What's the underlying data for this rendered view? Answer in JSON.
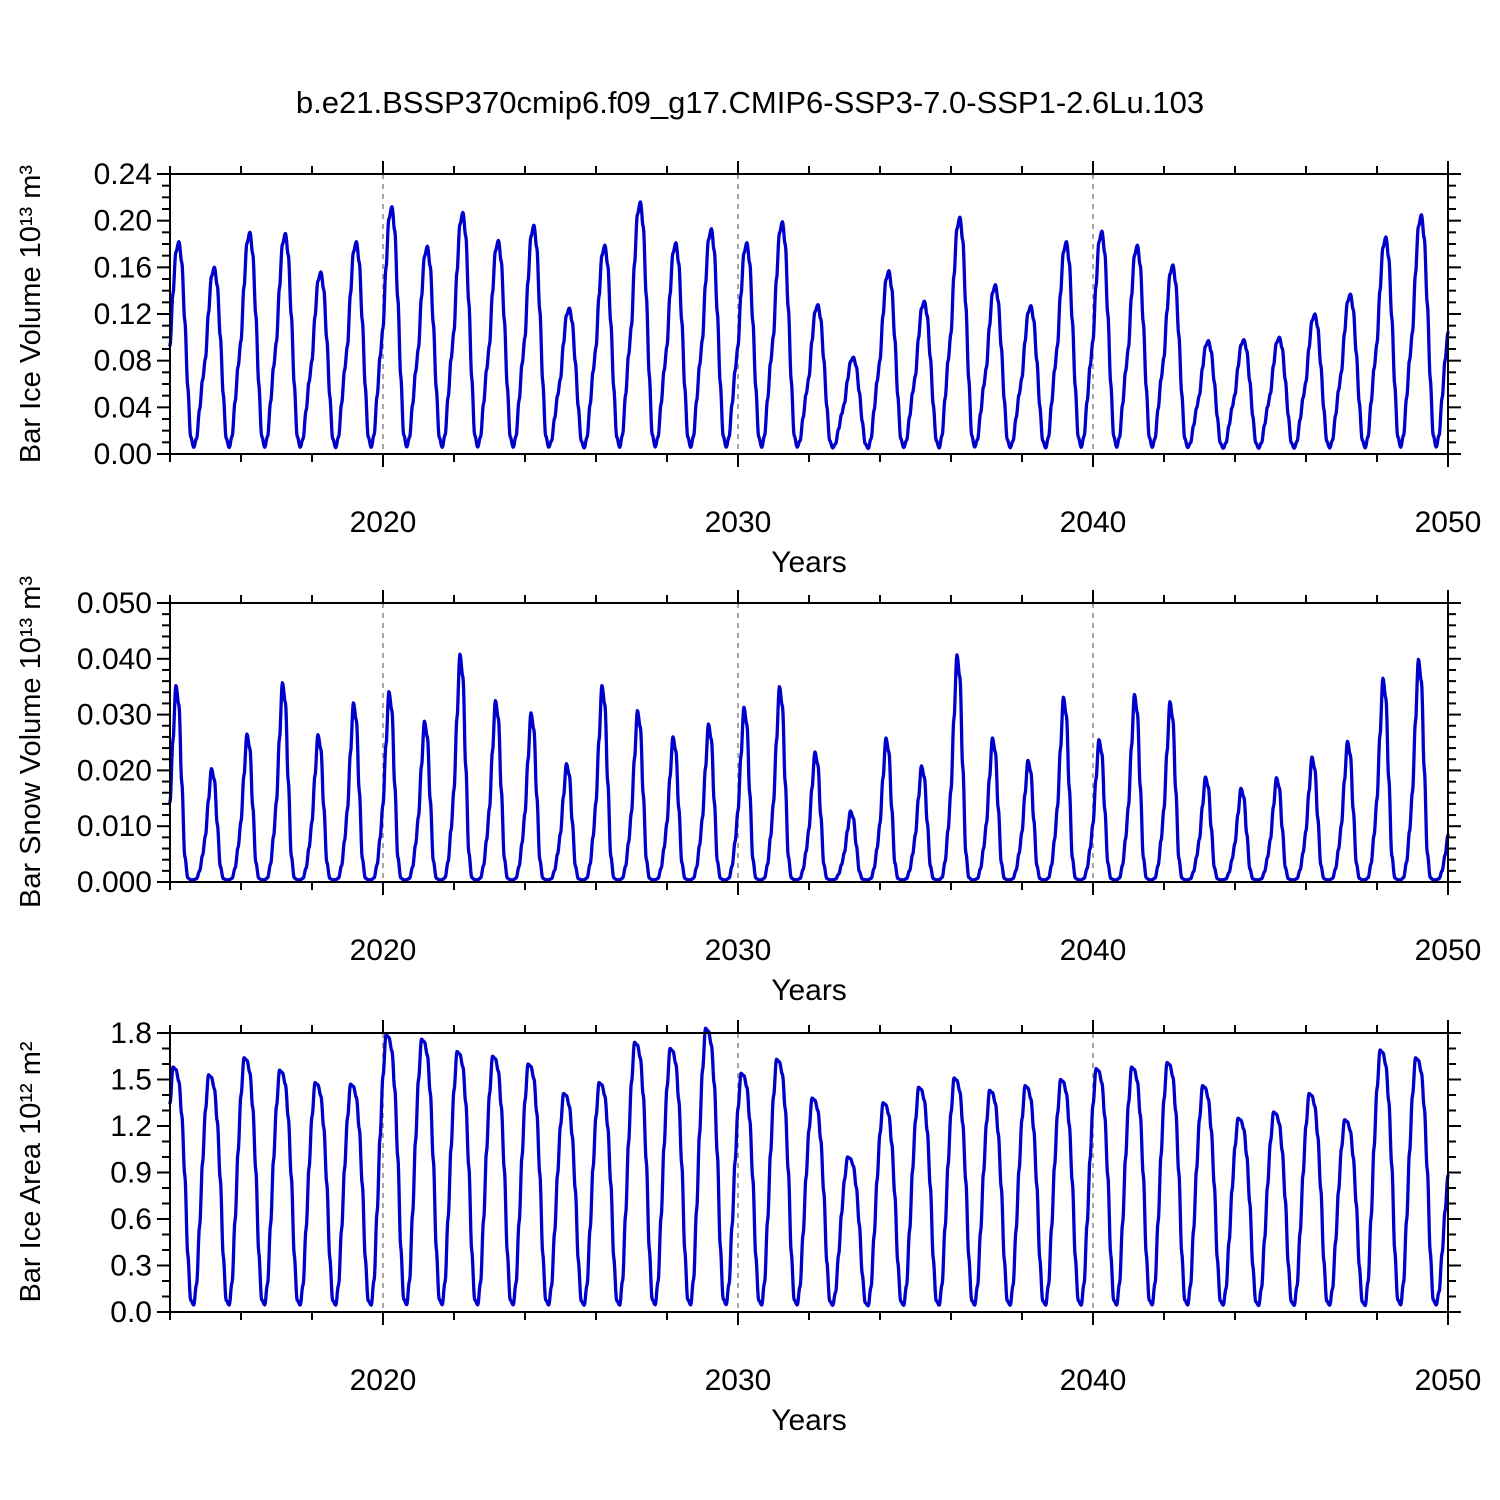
{
  "title": "b.e21.BSSP370cmip6.f09_g17.CMIP6-SSP3-7.0-SSP1-2.6Lu.103",
  "figure": {
    "background": "#ffffff",
    "axis_color": "#000000",
    "grid_color": "#888888",
    "line_color": "#0000CC"
  },
  "chart_data": [
    {
      "type": "line",
      "ylabel": "Bar Ice Volume 10¹³ m³",
      "xlabel": "Years",
      "series_name": "Bar Ice Volume",
      "x_start_year": 2014,
      "xlim": [
        2014,
        2050
      ],
      "xticks": [
        2020,
        2030,
        2040,
        2050
      ],
      "xtick_labels": [
        "2020",
        "2030",
        "2040",
        "2050"
      ],
      "x_minor_step": 2,
      "vertical_gridlines": [
        2020,
        2030,
        2040
      ],
      "ylim": [
        0,
        0.24
      ],
      "yticks": [
        0,
        0.04,
        0.08,
        0.12,
        0.16,
        0.2,
        0.24
      ],
      "ytick_labels": [
        "0.00",
        "0.04",
        "0.08",
        "0.12",
        "0.16",
        "0.20",
        "0.24"
      ],
      "y_minor_step": 0.01,
      "base": 0.004,
      "annual_peaks": [
        0.178,
        0.156,
        0.186,
        0.185,
        0.152,
        0.178,
        0.208,
        0.174,
        0.203,
        0.179,
        0.192,
        0.121,
        0.175,
        0.212,
        0.177,
        0.189,
        0.177,
        0.195,
        0.124,
        0.079,
        0.153,
        0.127,
        0.199,
        0.141,
        0.123,
        0.178,
        0.187,
        0.175,
        0.158,
        0.093,
        0.094,
        0.096,
        0.116,
        0.133,
        0.182,
        0.201,
        0.2
      ],
      "monthly_shape": [
        0.5,
        0.75,
        0.95,
        1.0,
        0.9,
        0.62,
        0.3,
        0.06,
        0.01,
        0.06,
        0.22,
        0.38
      ]
    },
    {
      "type": "line",
      "ylabel": "Bar Snow Volume 10¹³ m³",
      "xlabel": "Years",
      "series_name": "Bar Snow Volume",
      "x_start_year": 2014,
      "xlim": [
        2014,
        2050
      ],
      "xticks": [
        2020,
        2030,
        2040,
        2050
      ],
      "xtick_labels": [
        "2020",
        "2030",
        "2040",
        "2050"
      ],
      "x_minor_step": 2,
      "vertical_gridlines": [
        2020,
        2030,
        2040
      ],
      "ylim": [
        0,
        0.05
      ],
      "yticks": [
        0,
        0.01,
        0.02,
        0.03,
        0.04,
        0.05
      ],
      "ytick_labels": [
        "0.000",
        "0.010",
        "0.020",
        "0.030",
        "0.040",
        "0.050"
      ],
      "y_minor_step": 0.002,
      "base": 0.0004,
      "annual_peaks": [
        0.0348,
        0.0199,
        0.0261,
        0.0353,
        0.026,
        0.0317,
        0.0337,
        0.0284,
        0.0404,
        0.0321,
        0.0299,
        0.0208,
        0.0348,
        0.0303,
        0.0256,
        0.0279,
        0.0309,
        0.0346,
        0.0229,
        0.0123,
        0.0254,
        0.0204,
        0.0403,
        0.0254,
        0.0214,
        0.0327,
        0.0251,
        0.0332,
        0.0319,
        0.0184,
        0.0164,
        0.0183,
        0.022,
        0.0248,
        0.0361,
        0.0395,
        0.02
      ],
      "monthly_shape": [
        0.4,
        0.72,
        1.0,
        0.9,
        0.5,
        0.12,
        0.01,
        0.0,
        0.0,
        0.01,
        0.08,
        0.22
      ]
    },
    {
      "type": "line",
      "ylabel": "Bar Ice Area 10¹² m²",
      "xlabel": "Years",
      "series_name": "Bar Ice Area",
      "x_start_year": 2014,
      "xlim": [
        2014,
        2050
      ],
      "xticks": [
        2020,
        2030,
        2040,
        2050
      ],
      "xtick_labels": [
        "2020",
        "2030",
        "2040",
        "2050"
      ],
      "x_minor_step": 2,
      "vertical_gridlines": [
        2020,
        2030,
        2040
      ],
      "ylim": [
        0,
        1.8
      ],
      "yticks": [
        0,
        0.3,
        0.6,
        0.9,
        1.2,
        1.5,
        1.8
      ],
      "ytick_labels": [
        "0.0",
        "0.3",
        "0.6",
        "0.9",
        "1.2",
        "1.5",
        "1.8"
      ],
      "y_minor_step": 0.1,
      "base": 0.03,
      "annual_peaks": [
        1.55,
        1.5,
        1.61,
        1.53,
        1.45,
        1.44,
        1.76,
        1.73,
        1.65,
        1.62,
        1.57,
        1.38,
        1.45,
        1.71,
        1.67,
        1.8,
        1.51,
        1.6,
        1.35,
        0.97,
        1.32,
        1.42,
        1.48,
        1.4,
        1.43,
        1.47,
        1.54,
        1.55,
        1.58,
        1.43,
        1.22,
        1.26,
        1.38,
        1.21,
        1.66,
        1.61,
        1.0
      ],
      "monthly_shape": [
        0.85,
        1.0,
        0.99,
        0.94,
        0.8,
        0.55,
        0.22,
        0.03,
        0.01,
        0.1,
        0.35,
        0.62
      ]
    }
  ]
}
